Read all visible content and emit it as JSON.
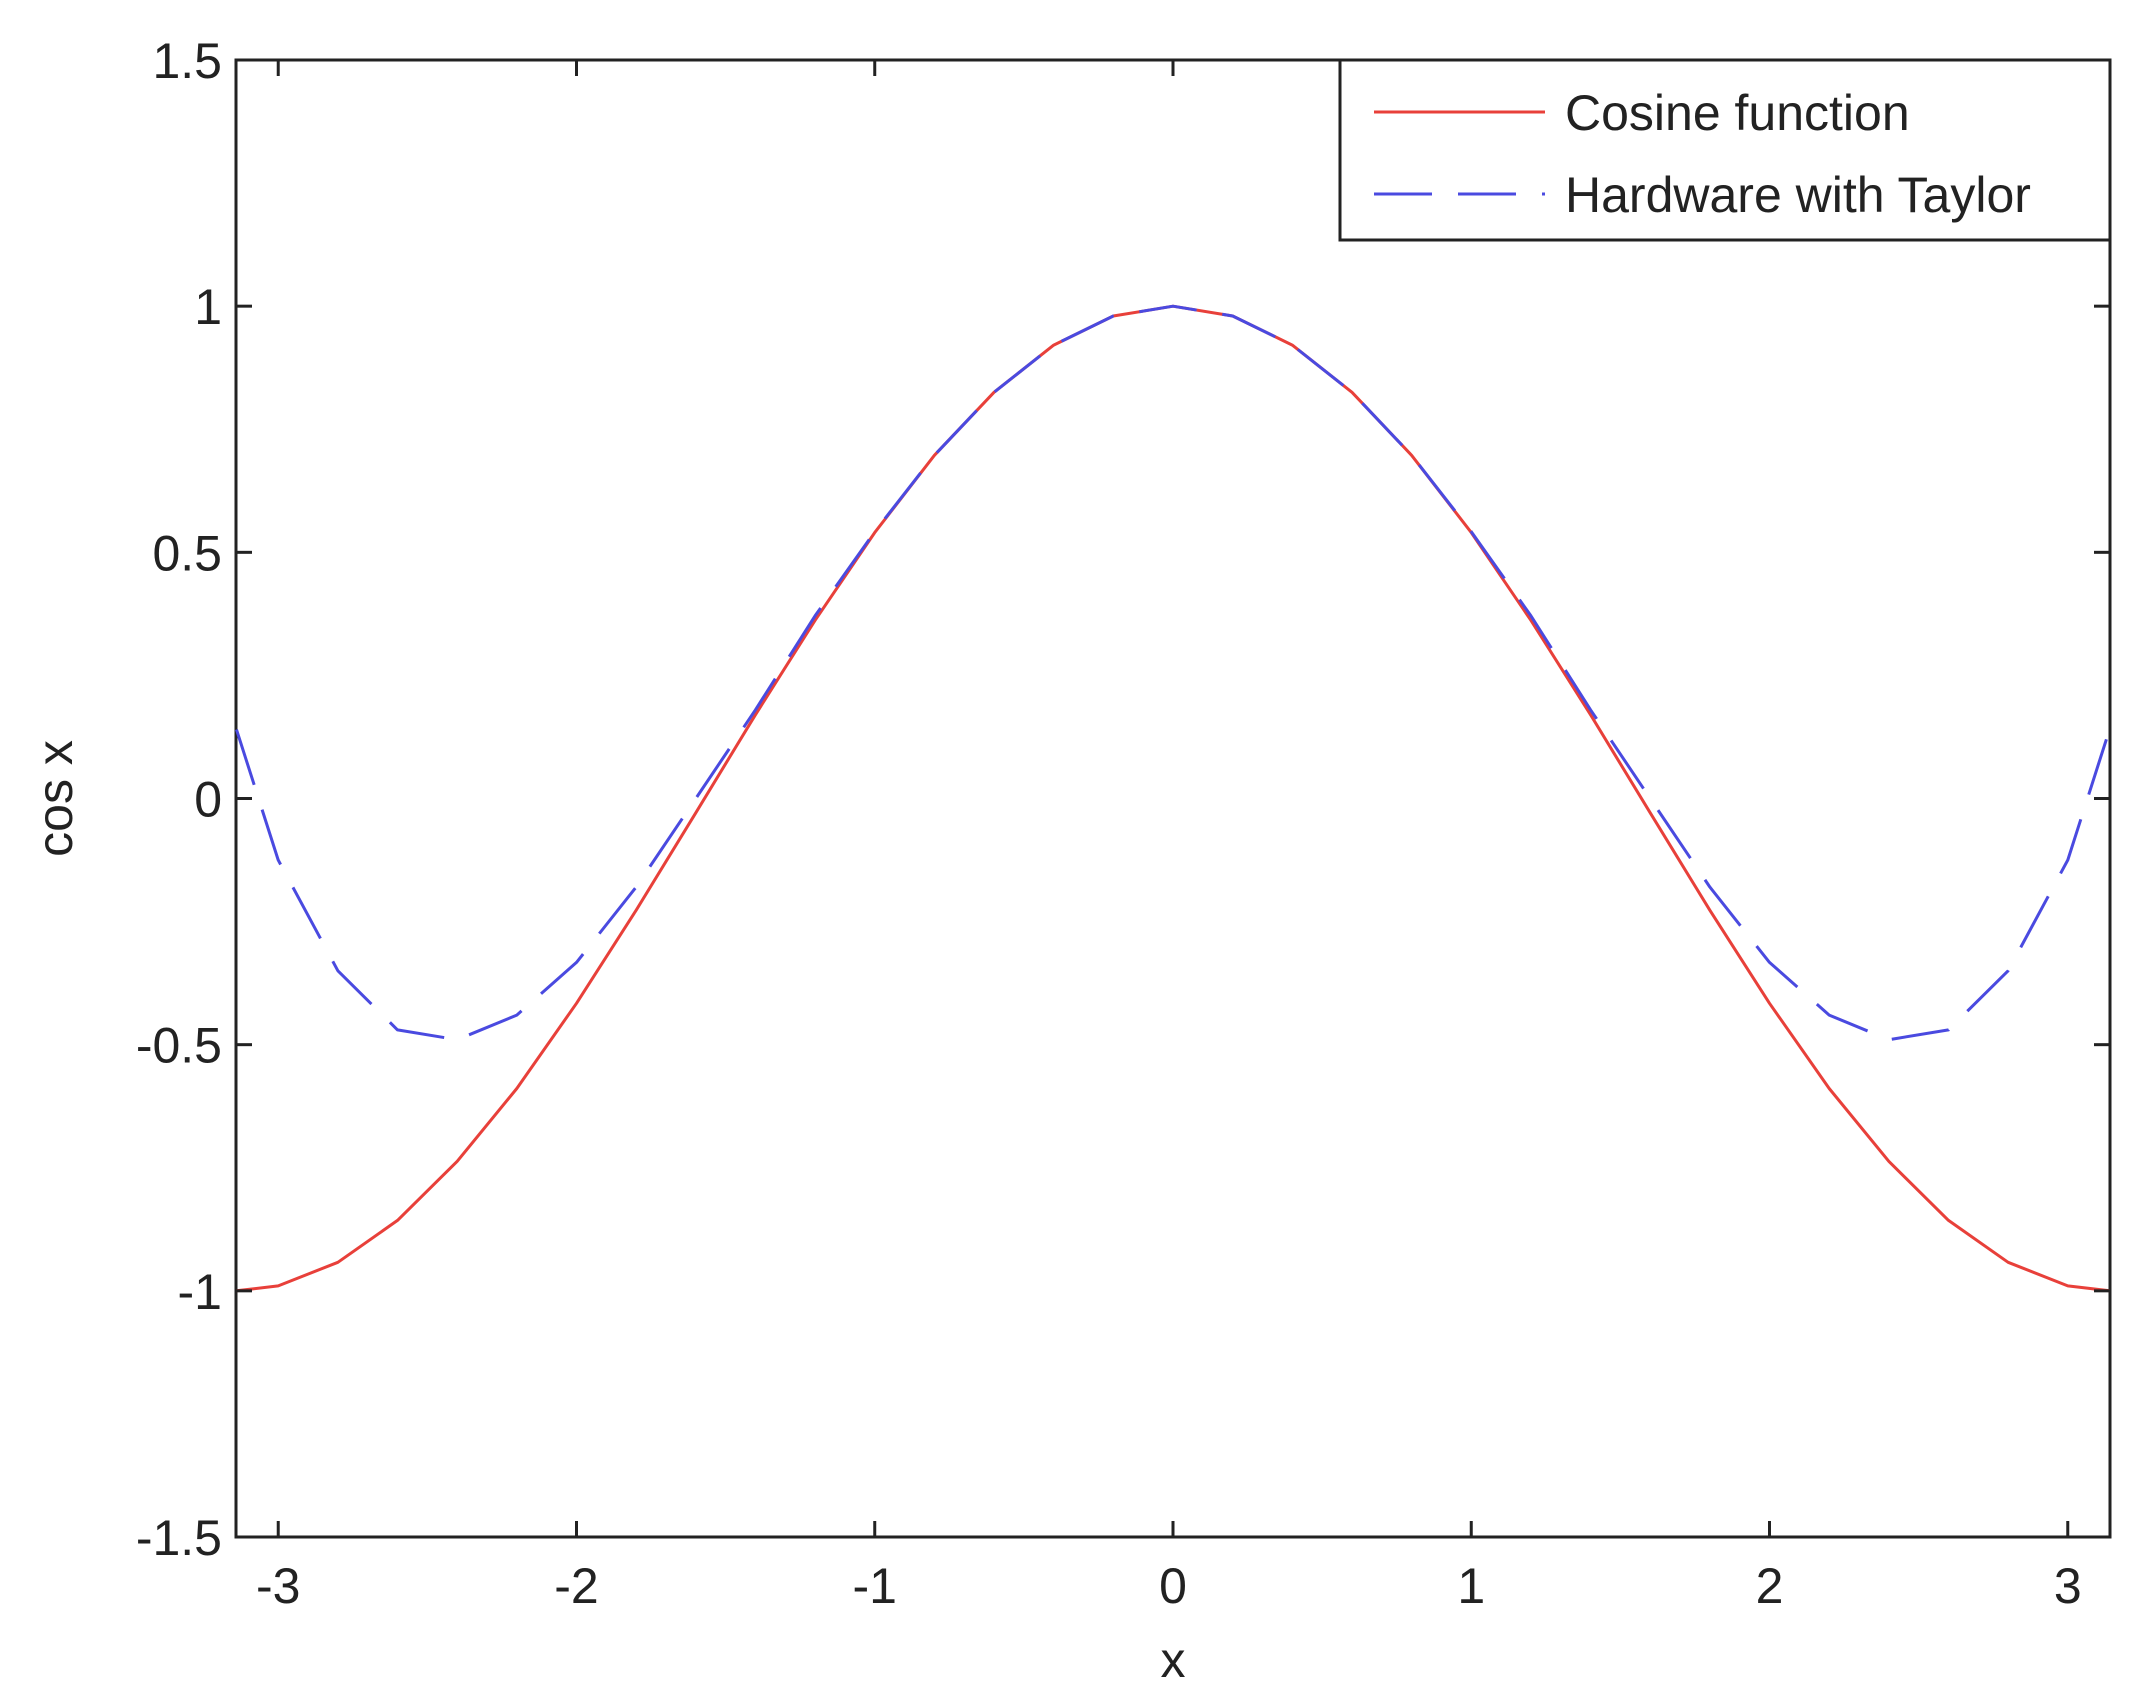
{
  "chart_data": {
    "type": "line",
    "title": "",
    "xlabel": "x",
    "ylabel": "cos x",
    "xlim": [
      -3.14159,
      3.14159
    ],
    "ylim": [
      -1.5,
      1.5
    ],
    "xticks": [
      -3,
      -2,
      -1,
      0,
      1,
      2,
      3
    ],
    "xtick_labels": [
      "-3",
      "-2",
      "-1",
      "0",
      "1",
      "2",
      "3"
    ],
    "yticks": [
      -1.5,
      -1,
      -0.5,
      0,
      0.5,
      1,
      1.5
    ],
    "ytick_labels": [
      "-1.5",
      "-1",
      "-0.5",
      "0",
      "0.5",
      "1",
      "1.5"
    ],
    "grid": false,
    "legend_position": "top-right",
    "series": [
      {
        "name": "Cosine function",
        "color": "#e8403a",
        "style": "solid",
        "x": [
          -3.14,
          -3.0,
          -2.8,
          -2.6,
          -2.4,
          -2.2,
          -2.0,
          -1.8,
          -1.6,
          -1.4,
          -1.2,
          -1.0,
          -0.8,
          -0.6,
          -0.4,
          -0.2,
          0.0,
          0.2,
          0.4,
          0.6,
          0.8,
          1.0,
          1.2,
          1.4,
          1.6,
          1.8,
          2.0,
          2.2,
          2.4,
          2.6,
          2.8,
          3.0,
          3.14
        ],
        "y": [
          -1.0,
          -0.99,
          -0.942,
          -0.857,
          -0.737,
          -0.589,
          -0.416,
          -0.227,
          -0.029,
          0.17,
          0.362,
          0.54,
          0.697,
          0.825,
          0.921,
          0.98,
          1.0,
          0.98,
          0.921,
          0.825,
          0.697,
          0.54,
          0.362,
          0.17,
          -0.029,
          -0.227,
          -0.416,
          -0.589,
          -0.737,
          -0.857,
          -0.942,
          -0.99,
          -1.0
        ]
      },
      {
        "name": "Hardware with Taylor",
        "color": "#4a4ae0",
        "style": "dashed",
        "x": [
          -3.14,
          -3.0,
          -2.8,
          -2.6,
          -2.4,
          -2.2,
          -2.0,
          -1.8,
          -1.6,
          -1.4,
          -1.2,
          -1.0,
          -0.8,
          -0.6,
          -0.4,
          -0.2,
          0.0,
          0.2,
          0.4,
          0.6,
          0.8,
          1.0,
          1.2,
          1.4,
          1.6,
          1.8,
          2.0,
          2.2,
          2.4,
          2.6,
          2.8,
          3.0,
          3.14
        ],
        "y": [
          0.14,
          -0.125,
          -0.35,
          -0.47,
          -0.49,
          -0.44,
          -0.333,
          -0.18,
          0.0,
          0.18,
          0.371,
          0.542,
          0.697,
          0.825,
          0.921,
          0.98,
          1.0,
          0.98,
          0.921,
          0.825,
          0.697,
          0.542,
          0.371,
          0.18,
          0.0,
          -0.18,
          -0.333,
          -0.44,
          -0.49,
          -0.47,
          -0.35,
          -0.125,
          0.14
        ]
      }
    ]
  }
}
